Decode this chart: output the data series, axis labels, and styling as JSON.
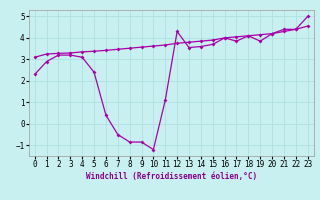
{
  "title": "",
  "xlabel": "Windchill (Refroidissement éolien,°C)",
  "bg_color": "#c8f0f0",
  "line_color": "#aa00aa",
  "grid_color": "#b0e0e0",
  "xlim": [
    -0.5,
    23.5
  ],
  "ylim": [
    -1.5,
    5.3
  ],
  "xticks": [
    0,
    1,
    2,
    3,
    4,
    5,
    6,
    7,
    8,
    9,
    10,
    11,
    12,
    13,
    14,
    15,
    16,
    17,
    18,
    19,
    20,
    21,
    22,
    23
  ],
  "yticks": [
    -1,
    0,
    1,
    2,
    3,
    4,
    5
  ],
  "line1_x": [
    0,
    1,
    2,
    3,
    4,
    5,
    6,
    7,
    8,
    9,
    10,
    11,
    12,
    13,
    14,
    15,
    16,
    17,
    18,
    19,
    20,
    21,
    22,
    23
  ],
  "line1_y": [
    2.3,
    2.9,
    3.2,
    3.2,
    3.1,
    2.4,
    0.4,
    -0.5,
    -0.85,
    -0.85,
    -1.2,
    1.1,
    4.3,
    3.55,
    3.6,
    3.7,
    4.0,
    3.85,
    4.1,
    3.85,
    4.2,
    4.4,
    4.4,
    5.0
  ],
  "line2_x": [
    0,
    1,
    2,
    3,
    4,
    5,
    6,
    7,
    8,
    9,
    10,
    11,
    12,
    13,
    14,
    15,
    16,
    17,
    18,
    19,
    20,
    21,
    22,
    23
  ],
  "line2_y": [
    3.1,
    3.25,
    3.28,
    3.3,
    3.35,
    3.38,
    3.42,
    3.47,
    3.52,
    3.57,
    3.62,
    3.67,
    3.75,
    3.8,
    3.85,
    3.9,
    4.0,
    4.05,
    4.1,
    4.15,
    4.2,
    4.3,
    4.4,
    4.55
  ],
  "tick_fontsize": 5.5,
  "xlabel_fontsize": 5.5
}
